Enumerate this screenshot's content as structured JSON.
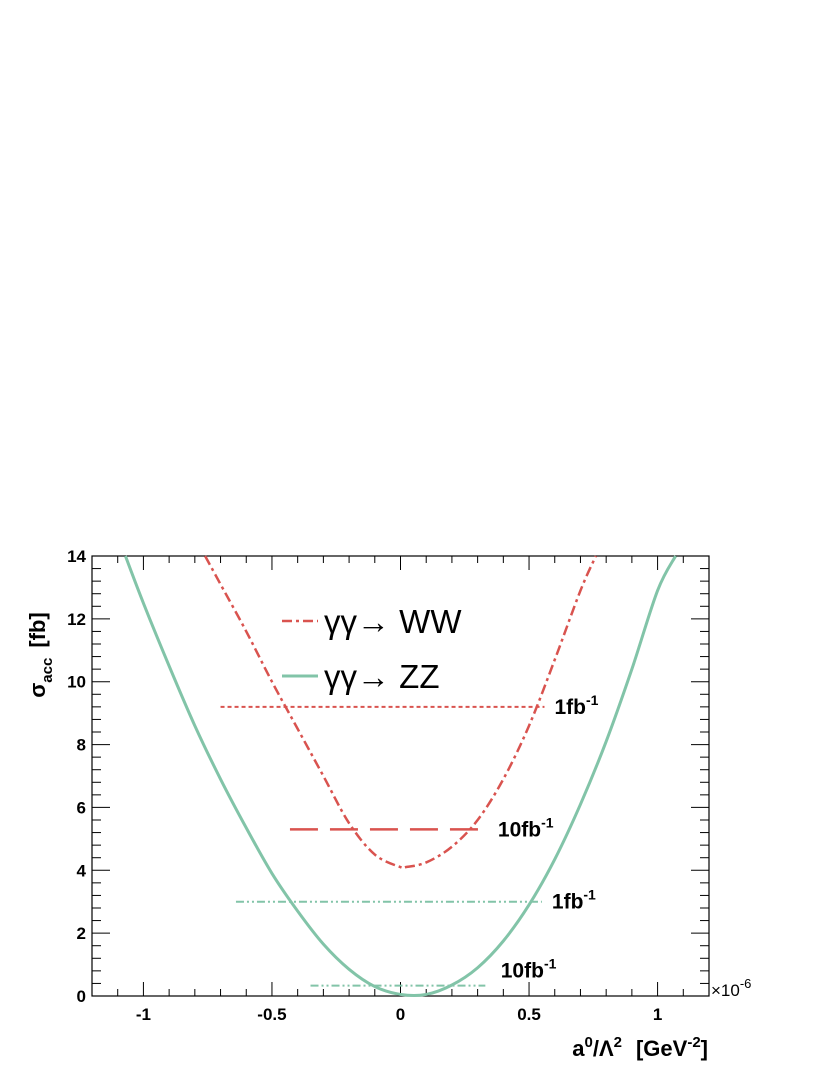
{
  "chart_data": {
    "type": "line",
    "xlabel": {
      "main": "a",
      "sup1": "0",
      "mid": "/Λ",
      "sup2": "2",
      "unit_pre": "[GeV",
      "unit_sup": "-2",
      "unit_post": "]"
    },
    "ylabel": {
      "main": "σ",
      "sub": "acc",
      "unit": "[fb]"
    },
    "x_exponent": {
      "prefix": "×10",
      "sup": "-6"
    },
    "xlim": [
      -1.2,
      1.2
    ],
    "ylim": [
      0,
      14
    ],
    "x_ticks": [
      {
        "value": -1,
        "label": "-1"
      },
      {
        "value": -0.5,
        "label": "-0.5"
      },
      {
        "value": 0,
        "label": "0"
      },
      {
        "value": 0.5,
        "label": "0.5"
      },
      {
        "value": 1,
        "label": "1"
      }
    ],
    "y_ticks": [
      {
        "value": 0,
        "label": "0"
      },
      {
        "value": 2,
        "label": "2"
      },
      {
        "value": 4,
        "label": "4"
      },
      {
        "value": 6,
        "label": "6"
      },
      {
        "value": 8,
        "label": "8"
      },
      {
        "value": 10,
        "label": "10"
      },
      {
        "value": 12,
        "label": "12"
      },
      {
        "value": 14,
        "label": "14"
      }
    ],
    "series": [
      {
        "name": "γγ→ WW",
        "color": "#d9534f",
        "style": "dash-dot",
        "x": [
          -0.76,
          -0.7,
          -0.6,
          -0.5,
          -0.4,
          -0.3,
          -0.2,
          -0.1,
          0.0,
          0.02,
          0.1,
          0.2,
          0.3,
          0.4,
          0.5,
          0.6,
          0.7,
          0.76
        ],
        "y": [
          14.0,
          13.1,
          11.6,
          10.0,
          8.5,
          7.0,
          5.5,
          4.5,
          4.1,
          4.1,
          4.25,
          4.75,
          5.6,
          6.9,
          8.6,
          10.7,
          12.9,
          14.0
        ]
      },
      {
        "name": "γγ→ ZZ",
        "color": "#82c4a8",
        "style": "solid",
        "x": [
          -1.07,
          -1.0,
          -0.9,
          -0.8,
          -0.7,
          -0.6,
          -0.5,
          -0.4,
          -0.3,
          -0.2,
          -0.1,
          0.0,
          0.1,
          0.2,
          0.3,
          0.4,
          0.5,
          0.6,
          0.7,
          0.8,
          0.9,
          1.0,
          1.07
        ],
        "y": [
          14.0,
          12.5,
          10.5,
          8.6,
          6.9,
          5.35,
          3.9,
          2.7,
          1.65,
          0.85,
          0.3,
          0.05,
          0.05,
          0.35,
          0.9,
          1.75,
          2.9,
          4.35,
          6.1,
          8.1,
          10.4,
          12.9,
          14.0
        ]
      }
    ],
    "limit_lines": [
      {
        "label_main": "1fb",
        "label_sup": "-1",
        "y": 9.2,
        "x_range": [
          -0.7,
          0.56
        ],
        "color": "#d9534f",
        "style": "dotted"
      },
      {
        "label_main": "10fb",
        "label_sup": "-1",
        "y": 5.3,
        "x_range": [
          -0.43,
          0.34
        ],
        "color": "#d9534f",
        "style": "long-dash"
      },
      {
        "label_main": "1fb",
        "label_sup": "-1",
        "y": 3.0,
        "x_range": [
          -0.64,
          0.55
        ],
        "color": "#82c4a8",
        "style": "dash-dot-dot"
      },
      {
        "label_main": "10fb",
        "label_sup": "-1",
        "y": 0.33,
        "x_range": [
          -0.35,
          0.33
        ],
        "color": "#82c4a8",
        "style": "dash-dot-dot"
      }
    ],
    "legend": {
      "placement": "top-center",
      "entries": [
        "γγ→ WW",
        "γγ→ ZZ"
      ]
    },
    "grid": false
  }
}
